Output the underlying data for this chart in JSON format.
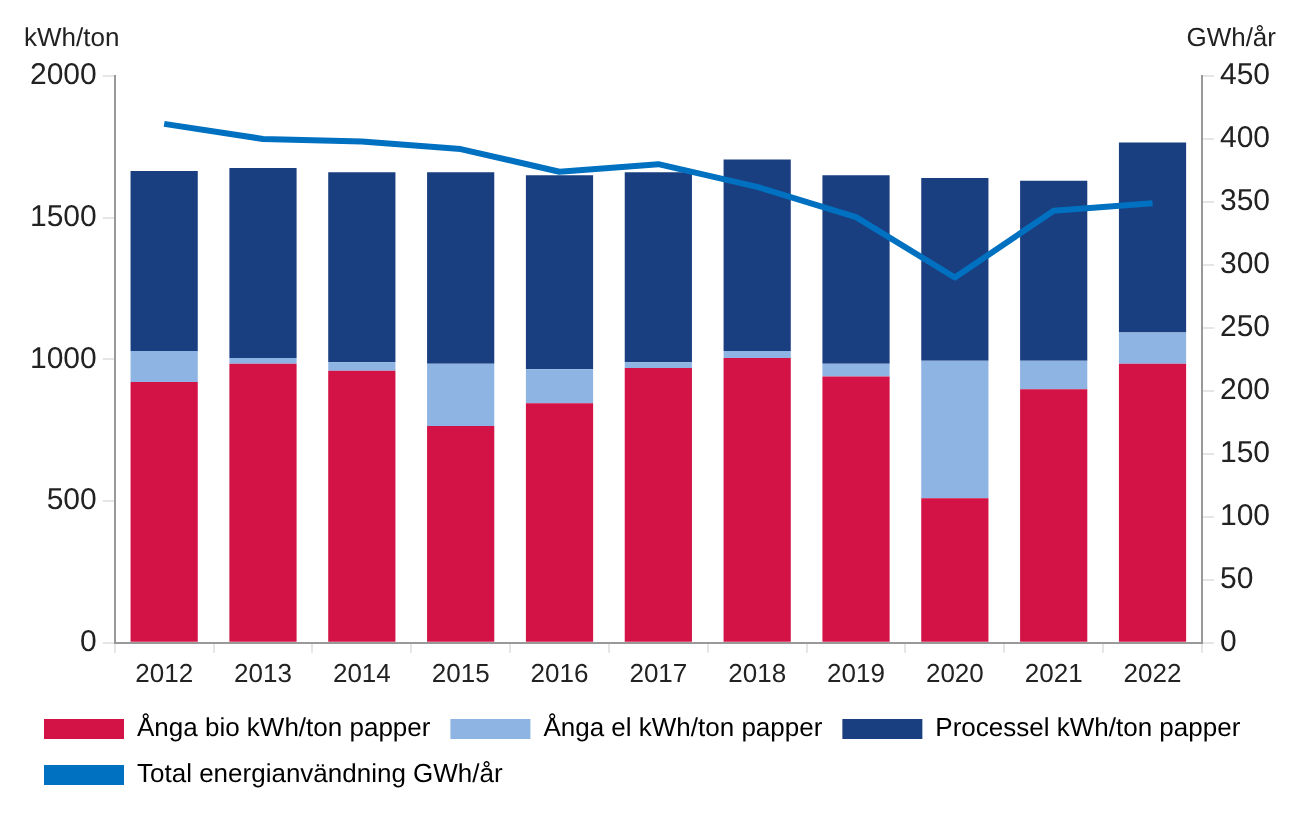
{
  "chart_data": {
    "type": "bar",
    "stacked": true,
    "ylabel": "kWh/ton",
    "y2label": "GWh/år",
    "categories": [
      "2012",
      "2013",
      "2014",
      "2015",
      "2016",
      "2017",
      "2018",
      "2019",
      "2020",
      "2021",
      "2022"
    ],
    "series": [
      {
        "name": "Ånga bio kWh/ton papper",
        "color": "#d31245",
        "values": [
          920,
          985,
          960,
          765,
          845,
          970,
          1005,
          940,
          510,
          895,
          985
        ]
      },
      {
        "name": "Ånga el kWh/ton papper",
        "color": "#8eb4e3",
        "values": [
          110,
          20,
          30,
          220,
          120,
          20,
          25,
          45,
          485,
          100,
          110
        ]
      },
      {
        "name": "Processel kWh/ton papper",
        "color": "#1a3f80",
        "values": [
          635,
          670,
          670,
          675,
          685,
          670,
          675,
          665,
          645,
          635,
          670
        ]
      },
      {
        "name": "Total energianvändning GWh/år",
        "type": "line",
        "axis": "y2",
        "color": "#0070c0",
        "values": [
          412,
          400,
          398,
          392,
          374,
          380,
          362,
          338,
          290,
          343,
          349
        ]
      }
    ],
    "ylim": [
      0,
      2000
    ],
    "yticks": [
      0,
      500,
      1000,
      1500,
      2000
    ],
    "y2lim": [
      0,
      450
    ],
    "y2ticks": [
      0,
      50,
      100,
      150,
      200,
      250,
      300,
      350,
      400,
      450
    ],
    "grid": false,
    "legend": "bottom",
    "marker": "none"
  }
}
